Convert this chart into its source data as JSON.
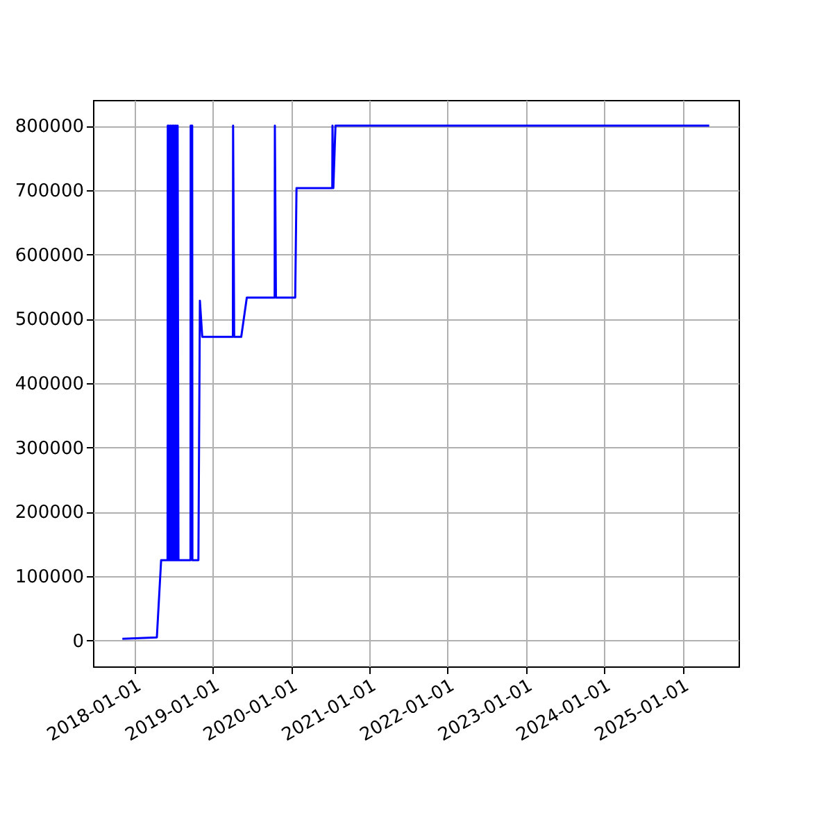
{
  "chart_data": {
    "type": "line",
    "x": [
      "2017-11-04",
      "2018-04-14",
      "2018-05-04",
      "2018-06-03",
      "2018-06-04",
      "2018-06-08",
      "2018-06-09",
      "2018-06-14",
      "2018-06-15",
      "2018-06-19",
      "2018-06-20",
      "2018-06-25",
      "2018-06-26",
      "2018-07-01",
      "2018-07-02",
      "2018-07-07",
      "2018-07-08",
      "2018-07-13",
      "2018-07-14",
      "2018-07-19",
      "2018-07-20",
      "2018-07-24",
      "2018-09-18",
      "2018-09-19",
      "2018-09-26",
      "2018-09-27",
      "2018-10-25",
      "2018-11-01",
      "2018-11-12",
      "2019-04-04",
      "2019-04-05",
      "2019-04-10",
      "2019-05-13",
      "2019-06-08",
      "2019-10-16",
      "2019-10-17",
      "2019-10-22",
      "2020-01-20",
      "2020-01-26",
      "2020-07-11",
      "2020-07-12",
      "2020-07-16",
      "2020-07-26",
      "2025-05-06"
    ],
    "series": [
      {
        "color": "#0000ff",
        "values": [
          3000,
          5000,
          125000,
          125000,
          800000,
          800000,
          125000,
          125000,
          800000,
          800000,
          125000,
          125000,
          800000,
          800000,
          125000,
          125000,
          800000,
          800000,
          125000,
          125000,
          800000,
          125000,
          125000,
          800000,
          800000,
          125000,
          125000,
          528000,
          472000,
          472000,
          800000,
          472000,
          472000,
          533000,
          533000,
          800000,
          533000,
          533000,
          703000,
          703000,
          800000,
          703000,
          800000,
          800000
        ]
      }
    ],
    "xlim": [
      "2017-06-20",
      "2025-09-20"
    ],
    "xticks": [
      {
        "value": "2018-01-01",
        "label": "2018-01-01"
      },
      {
        "value": "2019-01-01",
        "label": "2019-01-01"
      },
      {
        "value": "2020-01-01",
        "label": "2020-01-01"
      },
      {
        "value": "2021-01-01",
        "label": "2021-01-01"
      },
      {
        "value": "2022-01-01",
        "label": "2022-01-01"
      },
      {
        "value": "2023-01-01",
        "label": "2023-01-01"
      },
      {
        "value": "2024-01-01",
        "label": "2024-01-01"
      },
      {
        "value": "2025-01-01",
        "label": "2025-01-01"
      }
    ],
    "ylim": [
      -40000,
      840000
    ],
    "yticks": [
      0,
      100000,
      200000,
      300000,
      400000,
      500000,
      600000,
      700000,
      800000
    ],
    "grid": true,
    "line_style": "solid",
    "marker": "none"
  }
}
